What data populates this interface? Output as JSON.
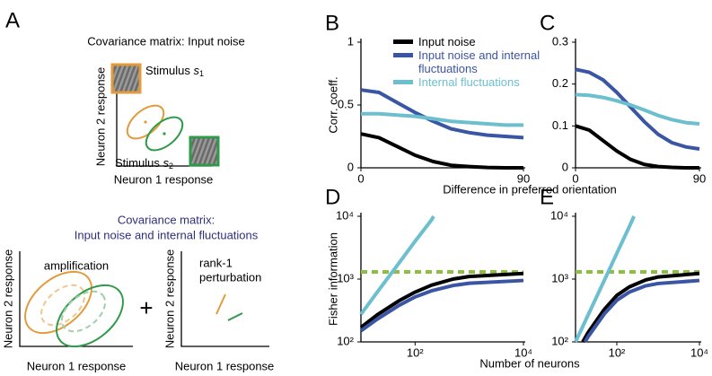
{
  "diagram": {
    "letter": "A",
    "title": "Covariance matrix: Input noise",
    "stimulus_1": {
      "label": "Stimulus",
      "symbol": "s",
      "index": "1"
    },
    "stimulus_2": {
      "label": "Stimulus",
      "symbol": "s",
      "index": "2"
    },
    "top_y_label": "Neuron 2 response",
    "top_x_label": "Neuron 1 response",
    "subtitle_1": "Covariance matrix:",
    "subtitle_2": "Input noise and internal fluctuations",
    "left_note": "amplification",
    "left_y_label": "Neuron 2 response",
    "left_x_label": "Neuron 1 response",
    "plus": "+",
    "right_note_1": "rank-1",
    "right_note_2": "perturbation",
    "right_y_label": "Neuron 2 response",
    "right_x_label": "Neuron 1 response"
  },
  "chart_data": [
    {
      "type": "line",
      "panel": "B",
      "ylabel": "Corr. coeff.",
      "xlabel": "Difference in preferred orientation",
      "x": [
        0,
        10,
        20,
        30,
        40,
        50,
        60,
        70,
        80,
        90
      ],
      "xlim": [
        0,
        90
      ],
      "xticks": [
        0,
        90
      ],
      "ylim": [
        0,
        1
      ],
      "yticks": [
        0,
        0.5,
        1
      ],
      "legend": "upper right",
      "series": [
        {
          "name": "Input noise",
          "color": "#000000",
          "values": [
            0.27,
            0.24,
            0.17,
            0.1,
            0.05,
            0.02,
            0.01,
            0.003,
            0,
            0
          ]
        },
        {
          "name": "Input noise and internal fluctuations",
          "color": "#3a55a4",
          "values": [
            0.62,
            0.6,
            0.52,
            0.44,
            0.37,
            0.31,
            0.28,
            0.26,
            0.25,
            0.24
          ]
        },
        {
          "name": "Internal fluctuations",
          "color": "#6bbfcf",
          "values": [
            0.43,
            0.43,
            0.42,
            0.41,
            0.39,
            0.37,
            0.36,
            0.35,
            0.34,
            0.34
          ]
        }
      ]
    },
    {
      "type": "line",
      "panel": "C",
      "x": [
        0,
        10,
        20,
        30,
        40,
        50,
        60,
        70,
        80,
        90
      ],
      "xlim": [
        0,
        90
      ],
      "xticks": [
        0,
        90
      ],
      "ylim": [
        0,
        0.3
      ],
      "yticks": [
        0,
        0.1,
        0.2,
        0.3
      ],
      "series": [
        {
          "color": "#000000",
          "values": [
            0.1,
            0.09,
            0.065,
            0.04,
            0.02,
            0.008,
            0.003,
            0.001,
            0,
            0
          ]
        },
        {
          "color": "#3a55a4",
          "values": [
            0.235,
            0.228,
            0.21,
            0.18,
            0.145,
            0.11,
            0.08,
            0.06,
            0.05,
            0.045
          ]
        },
        {
          "color": "#6bbfcf",
          "values": [
            0.175,
            0.173,
            0.168,
            0.16,
            0.15,
            0.138,
            0.125,
            0.115,
            0.108,
            0.105
          ]
        }
      ]
    },
    {
      "type": "line",
      "panel": "D",
      "ylabel": "Fisher information",
      "xlabel": "Number of neurons",
      "xlog": true,
      "ylog": true,
      "xlim": [
        10,
        10000
      ],
      "ylim": [
        100,
        10000
      ],
      "xticks": [
        {
          "value": 100,
          "label": "10²"
        },
        {
          "value": 10000,
          "label": "10⁴"
        }
      ],
      "yticks": [
        {
          "value": 100,
          "label": "10²"
        },
        {
          "value": 1000,
          "label": "10³"
        },
        {
          "value": 10000,
          "label": "10⁴"
        }
      ],
      "series": [
        {
          "color": "#8cbf3f",
          "dashed": true,
          "x": [
            10,
            10000
          ],
          "values": [
            1300,
            1300
          ]
        },
        {
          "color": "#6bbfcf",
          "x": [
            10,
            20,
            50,
            100,
            200,
            220
          ],
          "values": [
            275,
            620,
            1780,
            4000,
            8700,
            10000
          ]
        },
        {
          "color": "#000000",
          "x": [
            10,
            20,
            50,
            100,
            200,
            500,
            1000,
            10000
          ],
          "values": [
            170,
            270,
            450,
            620,
            800,
            1000,
            1100,
            1230
          ]
        },
        {
          "color": "#3a55a4",
          "x": [
            10,
            20,
            50,
            100,
            200,
            500,
            1000,
            10000
          ],
          "values": [
            150,
            230,
            380,
            520,
            650,
            790,
            860,
            950
          ]
        }
      ]
    },
    {
      "type": "line",
      "panel": "E",
      "xlog": true,
      "ylog": true,
      "xlim": [
        10,
        10000
      ],
      "ylim": [
        100,
        10000
      ],
      "xticks": [
        {
          "value": 100,
          "label": "10²"
        },
        {
          "value": 10000,
          "label": "10⁴"
        }
      ],
      "yticks": [
        {
          "value": 100,
          "label": "10²"
        },
        {
          "value": 1000,
          "label": "10³"
        },
        {
          "value": 10000,
          "label": "10⁴"
        }
      ],
      "series": [
        {
          "color": "#8cbf3f",
          "dashed": true,
          "x": [
            10,
            10000
          ],
          "values": [
            1300,
            1300
          ]
        },
        {
          "color": "#6bbfcf",
          "x": [
            10,
            20,
            50,
            100,
            200,
            260
          ],
          "values": [
            100,
            265,
            960,
            2570,
            6800,
            10000
          ]
        },
        {
          "color": "#000000",
          "x": [
            15,
            20,
            50,
            100,
            200,
            500,
            1000,
            10000
          ],
          "values": [
            100,
            140,
            330,
            550,
            750,
            970,
            1080,
            1230
          ]
        },
        {
          "color": "#3a55a4",
          "x": [
            17,
            20,
            50,
            100,
            200,
            500,
            1000,
            10000
          ],
          "values": [
            100,
            120,
            280,
            460,
            620,
            780,
            850,
            950
          ]
        }
      ]
    }
  ]
}
